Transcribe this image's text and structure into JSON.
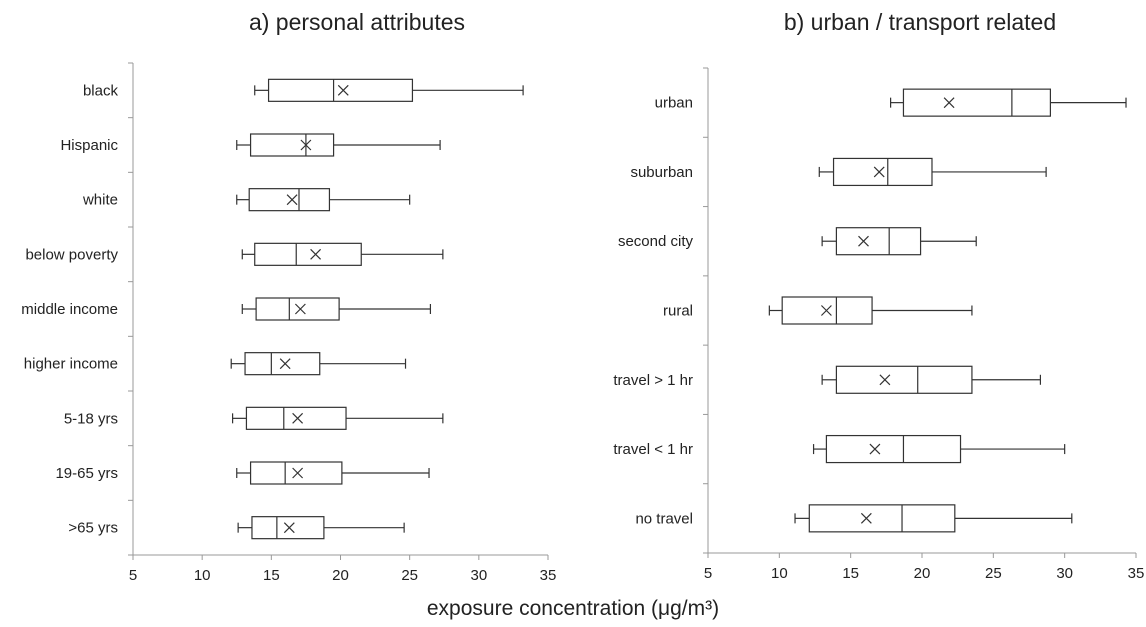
{
  "xlabel": "exposure concentration (μg/m³)",
  "chart_data": [
    {
      "type": "boxplot",
      "title": "a) personal attributes",
      "xlim": [
        5,
        35
      ],
      "xticks": [
        "5",
        "10",
        "15",
        "20",
        "25",
        "30",
        "35"
      ],
      "categories": [
        "black",
        "Hispanic",
        "white",
        "below poverty",
        "middle income",
        "higher income",
        "5-18 yrs",
        "19-65 yrs",
        ">65 yrs"
      ],
      "whisker_low": [
        13.8,
        12.5,
        12.5,
        12.9,
        12.9,
        12.1,
        12.2,
        12.5,
        12.6
      ],
      "q1": [
        14.8,
        13.5,
        13.4,
        13.8,
        13.9,
        13.1,
        13.2,
        13.5,
        13.6
      ],
      "median": [
        19.5,
        17.5,
        17.0,
        16.8,
        16.3,
        15.0,
        15.9,
        16.0,
        15.4
      ],
      "q3": [
        25.2,
        19.5,
        19.2,
        21.5,
        19.9,
        18.5,
        20.4,
        20.1,
        18.8
      ],
      "whisker_high": [
        33.2,
        27.2,
        25.0,
        27.4,
        26.5,
        24.7,
        27.4,
        26.4,
        24.6
      ],
      "mean": [
        20.2,
        17.5,
        16.5,
        18.2,
        17.1,
        16.0,
        16.9,
        16.9,
        16.3
      ]
    },
    {
      "type": "boxplot",
      "title": "b) urban / transport related",
      "xlim": [
        5,
        35
      ],
      "xticks": [
        "5",
        "10",
        "15",
        "20",
        "25",
        "30",
        "35"
      ],
      "categories": [
        "urban",
        "suburban",
        "second city",
        "rural",
        "travel > 1 hr",
        "travel < 1 hr",
        "no travel"
      ],
      "whisker_low": [
        17.8,
        12.8,
        13.0,
        9.3,
        13.0,
        12.4,
        11.1
      ],
      "q1": [
        18.7,
        13.8,
        14.0,
        10.2,
        14.0,
        13.3,
        12.1
      ],
      "median": [
        26.3,
        17.6,
        17.7,
        14.0,
        19.7,
        18.7,
        18.6
      ],
      "q3": [
        29.0,
        20.7,
        19.9,
        16.5,
        23.5,
        22.7,
        22.3
      ],
      "whisker_high": [
        34.3,
        28.7,
        23.8,
        23.5,
        28.3,
        30.0,
        30.5
      ],
      "mean": [
        21.9,
        17.0,
        15.9,
        13.3,
        17.4,
        16.7,
        16.1
      ]
    }
  ]
}
